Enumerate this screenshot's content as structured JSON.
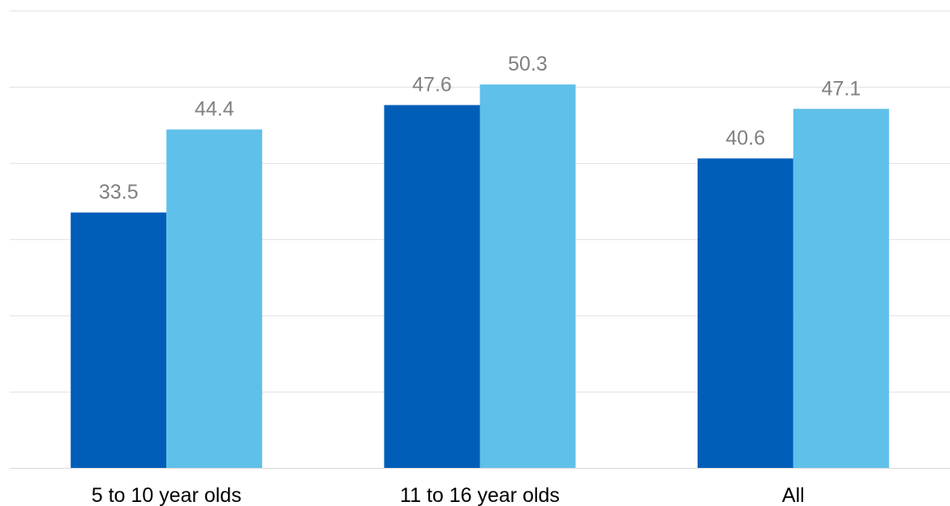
{
  "chart_data": {
    "type": "bar",
    "categories": [
      "5 to 10 year olds",
      "11 to 16 year olds",
      "All"
    ],
    "series": [
      {
        "values": [
          33.5,
          47.6,
          40.6
        ],
        "color": "#005eb8"
      },
      {
        "values": [
          44.4,
          50.3,
          47.1
        ],
        "color": "#5fc0ea"
      }
    ],
    "ylim": [
      0,
      60
    ],
    "y_grid_step": 10,
    "grid": true,
    "title": "",
    "xlabel": "",
    "ylabel": "",
    "data_labels": true
  }
}
